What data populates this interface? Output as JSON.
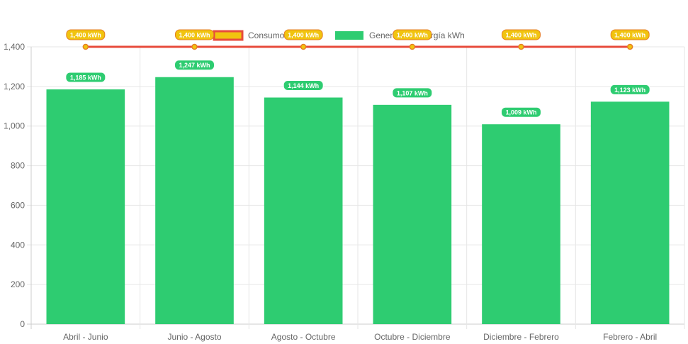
{
  "chart_data": {
    "type": "bar",
    "categories": [
      "Abril - Junio",
      "Junio - Agosto",
      "Agosto - Octubre",
      "Octubre - Diciembre",
      "Diciembre - Febrero",
      "Febrero - Abril"
    ],
    "series": [
      {
        "name": "Consumo kWh",
        "type": "line",
        "values": [
          1400,
          1400,
          1400,
          1400,
          1400,
          1400
        ],
        "labels": [
          "1,400 kWh",
          "1,400 kWh",
          "1,400 kWh",
          "1,400 kWh",
          "1,400 kWh",
          "1,400 kWh"
        ],
        "line_color": "#e74c3c",
        "point_color": "#f1c40f",
        "label_bg": "#f1c40f",
        "label_border": "#e67e22"
      },
      {
        "name": "Generación Energía kWh",
        "type": "bar",
        "values": [
          1185,
          1247,
          1144,
          1107,
          1009,
          1123
        ],
        "labels": [
          "1,185 kWh",
          "1,247 kWh",
          "1,144 kWh",
          "1,107 kWh",
          "1,009 kWh",
          "1,123 kWh"
        ],
        "color": "#2ecc71"
      }
    ],
    "yticks": [
      "0",
      "200",
      "400",
      "600",
      "800",
      "1,000",
      "1,200",
      "1,400"
    ],
    "ylim": [
      0,
      1400
    ],
    "grid": true,
    "legend_position": "top"
  }
}
